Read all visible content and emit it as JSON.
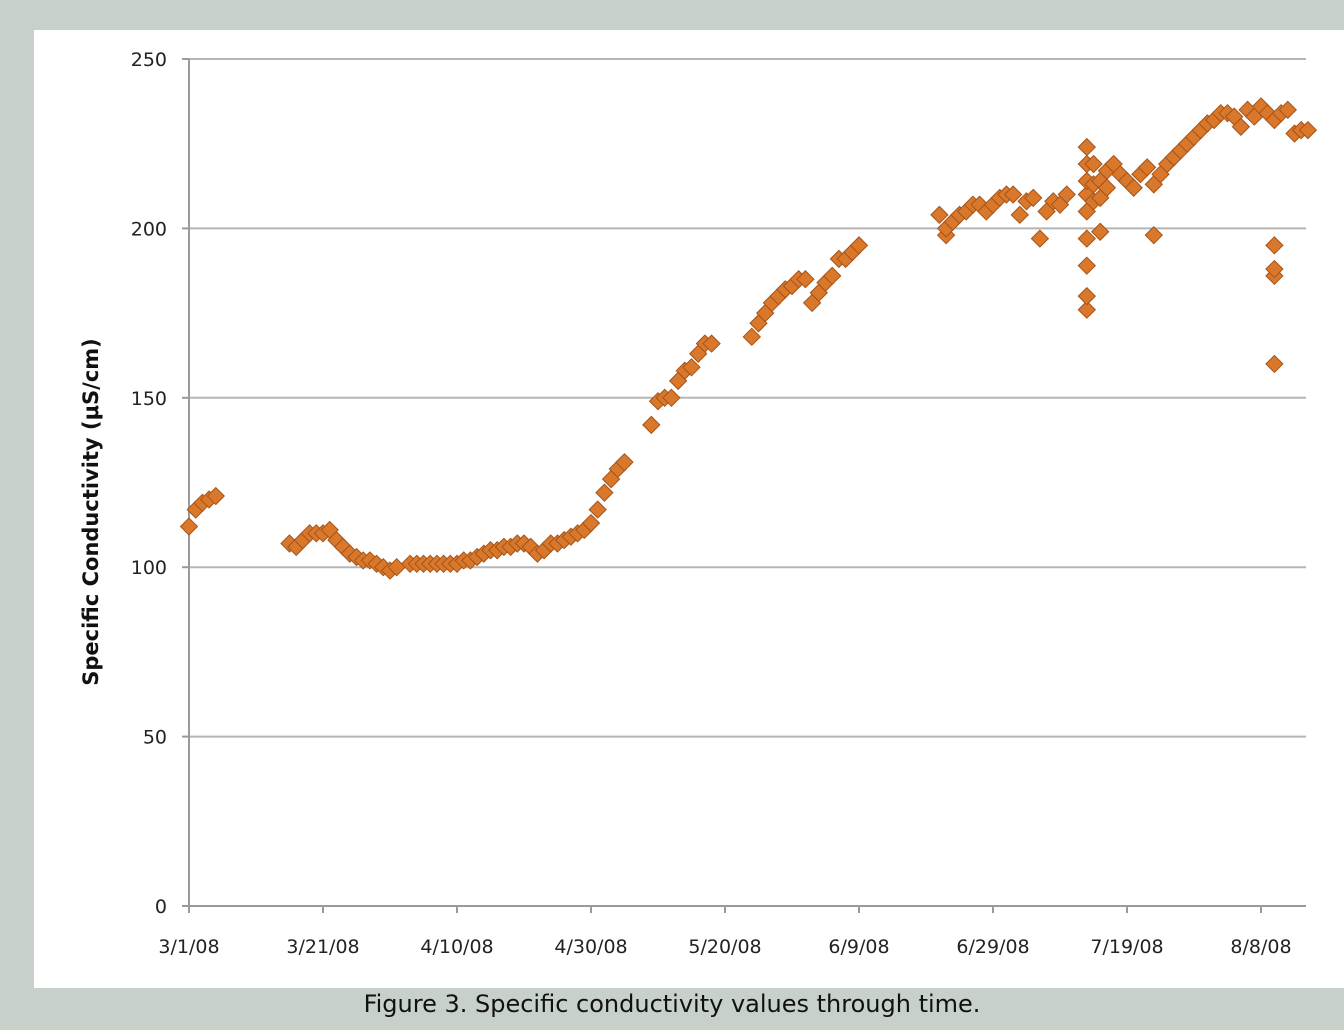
{
  "caption": "Figure 3.  Specific conductivity values through time.",
  "colors": {
    "marker": "#d9772a",
    "marker_stroke": "#a4541a",
    "background": "#c7d0c9",
    "grid": "#b5b5b5"
  },
  "chart_data": {
    "type": "scatter",
    "title": "",
    "xlabel": "",
    "ylabel": "Specific Conductivity (μS/cm)",
    "ylim": [
      0,
      250
    ],
    "yticks": [
      0,
      50,
      100,
      150,
      200,
      250
    ],
    "xlim": [
      "3/1/08",
      "8/15/08"
    ],
    "xtick_labels": [
      "3/1/08",
      "3/21/08",
      "4/10/08",
      "4/30/08",
      "5/20/08",
      "6/9/08",
      "6/29/08",
      "7/19/08",
      "8/8/08"
    ],
    "grid": "horizontal",
    "legend": "none",
    "marker": "diamond",
    "series": [
      {
        "points": [
          [
            "3/1/08",
            112
          ],
          [
            "3/2/08",
            117
          ],
          [
            "3/3/08",
            119
          ],
          [
            "3/4/08",
            120
          ],
          [
            "3/5/08",
            121
          ],
          [
            "3/16/08",
            107
          ],
          [
            "3/17/08",
            106
          ],
          [
            "3/18/08",
            108
          ],
          [
            "3/19/08",
            110
          ],
          [
            "3/20/08",
            110
          ],
          [
            "3/21/08",
            110
          ],
          [
            "3/22/08",
            111
          ],
          [
            "3/23/08",
            108
          ],
          [
            "3/24/08",
            106
          ],
          [
            "3/25/08",
            104
          ],
          [
            "3/26/08",
            103
          ],
          [
            "3/27/08",
            102
          ],
          [
            "3/28/08",
            102
          ],
          [
            "3/29/08",
            101
          ],
          [
            "3/30/08",
            100
          ],
          [
            "3/31/08",
            99
          ],
          [
            "4/1/08",
            100
          ],
          [
            "4/3/08",
            101
          ],
          [
            "4/4/08",
            101
          ],
          [
            "4/5/08",
            101
          ],
          [
            "4/6/08",
            101
          ],
          [
            "4/7/08",
            101
          ],
          [
            "4/8/08",
            101
          ],
          [
            "4/9/08",
            101
          ],
          [
            "4/10/08",
            101
          ],
          [
            "4/11/08",
            102
          ],
          [
            "4/12/08",
            102
          ],
          [
            "4/13/08",
            103
          ],
          [
            "4/14/08",
            104
          ],
          [
            "4/15/08",
            105
          ],
          [
            "4/16/08",
            105
          ],
          [
            "4/17/08",
            106
          ],
          [
            "4/18/08",
            106
          ],
          [
            "4/19/08",
            107
          ],
          [
            "4/20/08",
            107
          ],
          [
            "4/21/08",
            106
          ],
          [
            "4/22/08",
            104
          ],
          [
            "4/23/08",
            105
          ],
          [
            "4/24/08",
            107
          ],
          [
            "4/25/08",
            107
          ],
          [
            "4/26/08",
            108
          ],
          [
            "4/27/08",
            109
          ],
          [
            "4/28/08",
            110
          ],
          [
            "4/29/08",
            111
          ],
          [
            "4/30/08",
            113
          ],
          [
            "5/1/08",
            117
          ],
          [
            "5/2/08",
            122
          ],
          [
            "5/3/08",
            126
          ],
          [
            "5/4/08",
            129
          ],
          [
            "5/5/08",
            131
          ],
          [
            "5/9/08",
            142
          ],
          [
            "5/10/08",
            149
          ],
          [
            "5/11/08",
            150
          ],
          [
            "5/12/08",
            150
          ],
          [
            "5/13/08",
            155
          ],
          [
            "5/14/08",
            158
          ],
          [
            "5/15/08",
            159
          ],
          [
            "5/16/08",
            163
          ],
          [
            "5/17/08",
            166
          ],
          [
            "5/18/08",
            166
          ],
          [
            "5/24/08",
            168
          ],
          [
            "5/25/08",
            172
          ],
          [
            "5/26/08",
            175
          ],
          [
            "5/27/08",
            178
          ],
          [
            "5/28/08",
            180
          ],
          [
            "5/29/08",
            182
          ],
          [
            "5/30/08",
            183
          ],
          [
            "5/31/08",
            185
          ],
          [
            "6/1/08",
            185
          ],
          [
            "6/2/08",
            178
          ],
          [
            "6/3/08",
            181
          ],
          [
            "6/4/08",
            184
          ],
          [
            "6/5/08",
            186
          ],
          [
            "6/6/08",
            191
          ],
          [
            "6/7/08",
            191
          ],
          [
            "6/8/08",
            193
          ],
          [
            "6/9/08",
            195
          ],
          [
            "6/21/08",
            204
          ],
          [
            "6/22/08",
            198
          ],
          [
            "6/22/08",
            200
          ],
          [
            "6/23/08",
            202
          ],
          [
            "6/24/08",
            204
          ],
          [
            "6/25/08",
            205
          ],
          [
            "6/26/08",
            207
          ],
          [
            "6/27/08",
            207
          ],
          [
            "6/28/08",
            205
          ],
          [
            "6/29/08",
            207
          ],
          [
            "6/30/08",
            209
          ],
          [
            "7/1/08",
            210
          ],
          [
            "7/2/08",
            210
          ],
          [
            "7/3/08",
            204
          ],
          [
            "7/4/08",
            208
          ],
          [
            "7/5/08",
            209
          ],
          [
            "7/6/08",
            197
          ],
          [
            "7/7/08",
            205
          ],
          [
            "7/8/08",
            208
          ],
          [
            "7/9/08",
            207
          ],
          [
            "7/10/08",
            210
          ],
          [
            "7/13/08",
            176
          ],
          [
            "7/13/08",
            180
          ],
          [
            "7/13/08",
            189
          ],
          [
            "7/13/08",
            197
          ],
          [
            "7/13/08",
            205
          ],
          [
            "7/13/08",
            210
          ],
          [
            "7/13/08",
            214
          ],
          [
            "7/13/08",
            219
          ],
          [
            "7/13/08",
            224
          ],
          [
            "7/14/08",
            208
          ],
          [
            "7/14/08",
            213
          ],
          [
            "7/14/08",
            219
          ],
          [
            "7/15/08",
            199
          ],
          [
            "7/15/08",
            209
          ],
          [
            "7/15/08",
            214
          ],
          [
            "7/16/08",
            212
          ],
          [
            "7/16/08",
            217
          ],
          [
            "7/17/08",
            219
          ],
          [
            "7/18/08",
            216
          ],
          [
            "7/19/08",
            214
          ],
          [
            "7/20/08",
            212
          ],
          [
            "7/21/08",
            216
          ],
          [
            "7/22/08",
            218
          ],
          [
            "7/23/08",
            198
          ],
          [
            "7/23/08",
            213
          ],
          [
            "7/24/08",
            216
          ],
          [
            "7/25/08",
            219
          ],
          [
            "7/26/08",
            221
          ],
          [
            "7/27/08",
            223
          ],
          [
            "7/28/08",
            225
          ],
          [
            "7/29/08",
            227
          ],
          [
            "7/30/08",
            229
          ],
          [
            "7/31/08",
            231
          ],
          [
            "8/1/08",
            232
          ],
          [
            "8/2/08",
            234
          ],
          [
            "8/3/08",
            234
          ],
          [
            "8/4/08",
            233
          ],
          [
            "8/5/08",
            230
          ],
          [
            "8/6/08",
            235
          ],
          [
            "8/7/08",
            233
          ],
          [
            "8/8/08",
            236
          ],
          [
            "8/9/08",
            234
          ],
          [
            "8/10/08",
            232
          ],
          [
            "8/10/08",
            160
          ],
          [
            "8/10/08",
            186
          ],
          [
            "8/10/08",
            188
          ],
          [
            "8/10/08",
            195
          ],
          [
            "8/11/08",
            234
          ],
          [
            "8/12/08",
            235
          ],
          [
            "8/13/08",
            228
          ],
          [
            "8/14/08",
            229
          ],
          [
            "8/15/08",
            229
          ]
        ]
      }
    ]
  }
}
